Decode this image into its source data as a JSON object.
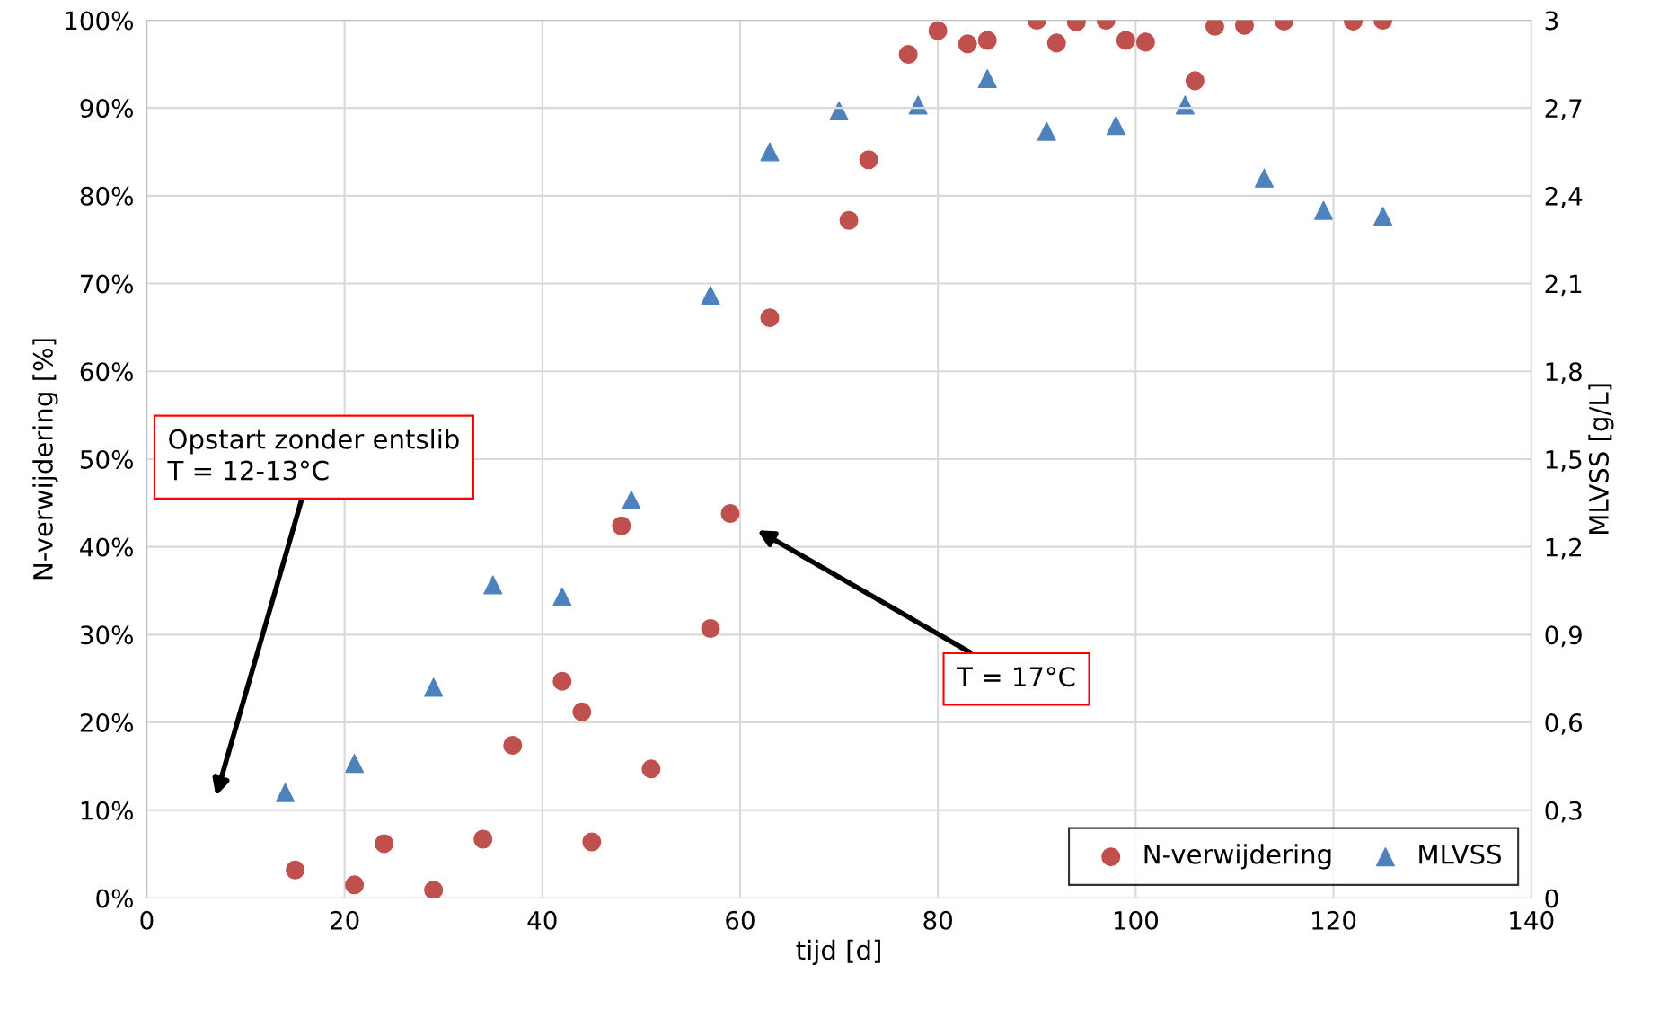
{
  "chart_data": {
    "type": "scatter",
    "xlabel": "tijd [d]",
    "ylabel": "N-verwijdering [%]",
    "y2label": "MLVSS [g/L]",
    "xlim": [
      0,
      140
    ],
    "xticks": [
      0,
      20,
      40,
      60,
      80,
      100,
      120,
      140
    ],
    "ylim": [
      0,
      100
    ],
    "yticks": [
      {
        "value": 0,
        "label": "0%"
      },
      {
        "value": 10,
        "label": "10%"
      },
      {
        "value": 20,
        "label": "20%"
      },
      {
        "value": 30,
        "label": "30%"
      },
      {
        "value": 40,
        "label": "40%"
      },
      {
        "value": 50,
        "label": "50%"
      },
      {
        "value": 60,
        "label": "60%"
      },
      {
        "value": 70,
        "label": "70%"
      },
      {
        "value": 80,
        "label": "80%"
      },
      {
        "value": 90,
        "label": "90%"
      },
      {
        "value": 100,
        "label": "100%"
      }
    ],
    "y2lim": [
      0,
      3
    ],
    "y2ticks": [
      0,
      {
        "value": 0.3,
        "label": "0,3"
      },
      {
        "value": 0.6,
        "label": "0,6"
      },
      {
        "value": 0.9,
        "label": "0,9"
      },
      {
        "value": 1.2,
        "label": "1,2"
      },
      {
        "value": 1.5,
        "label": "1,5"
      },
      {
        "value": 1.8,
        "label": "1,8"
      },
      {
        "value": 2.1,
        "label": "2,1"
      },
      {
        "value": 2.4,
        "label": "2,4"
      },
      {
        "value": 2.7,
        "label": "2,7"
      },
      3
    ],
    "grid": true,
    "legend": "bottom right",
    "series": [
      {
        "name": "N-verwijdering",
        "color": "#c0504d",
        "marker": "circle",
        "x": [
          15,
          21,
          24,
          29,
          34,
          37,
          42,
          44,
          45,
          48,
          51,
          57,
          59,
          63,
          71,
          73,
          77,
          80,
          83,
          85,
          90,
          92,
          94,
          97,
          99,
          101,
          106,
          108,
          111,
          115,
          122,
          125
        ],
        "values": [
          3.2,
          1.5,
          6.2,
          0.9,
          6.7,
          17.4,
          24.7,
          21.2,
          6.4,
          42.4,
          14.7,
          30.7,
          43.8,
          66.1,
          77.2,
          84.1,
          96.1,
          98.8,
          97.3,
          97.7,
          100,
          97.4,
          99.8,
          100,
          97.7,
          97.5,
          93.1,
          99.3,
          99.4,
          99.9,
          99.9,
          100
        ]
      },
      {
        "name": "MLVSS",
        "color": "#4f81bd",
        "marker": "triangle",
        "axis": "y2",
        "x": [
          14,
          21,
          29,
          35,
          42,
          49,
          57,
          63,
          70,
          78,
          85,
          91,
          98,
          105,
          113,
          119,
          125
        ],
        "values": [
          0.36,
          0.46,
          0.72,
          1.07,
          1.03,
          1.36,
          2.06,
          2.55,
          2.69,
          2.71,
          2.8,
          2.62,
          2.64,
          2.71,
          2.46,
          2.35,
          2.33
        ]
      }
    ],
    "annotations": [
      "Opstart zonder entslib\nT = 12-13°C",
      "T = 17°C"
    ]
  }
}
